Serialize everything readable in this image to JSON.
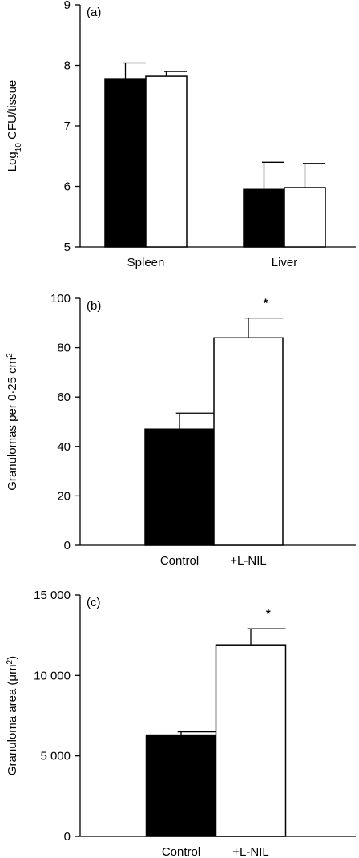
{
  "chart_data": [
    {
      "type": "bar",
      "panel": "(a)",
      "ylabel": [
        "Log",
        "10",
        " CFU/tissue"
      ],
      "categories": [
        "Spleen",
        "Liver"
      ],
      "series": [
        {
          "color": "#000000",
          "values": [
            7.78,
            5.95
          ],
          "errors": [
            0.26,
            0.45
          ]
        },
        {
          "color": "#ffffff",
          "values": [
            7.82,
            5.98
          ],
          "errors": [
            0.08,
            0.4
          ]
        }
      ],
      "ylim": [
        5,
        9
      ],
      "yticks": [
        5,
        6,
        7,
        8,
        9
      ]
    },
    {
      "type": "bar",
      "panel": "(b)",
      "ylabel": [
        "Granulomas per 0·25 cm",
        "2"
      ],
      "categories": [
        "Control",
        "+L-NIL"
      ],
      "values": [
        47,
        84
      ],
      "errors": [
        6.5,
        8
      ],
      "colors": [
        "#000000",
        "#ffffff"
      ],
      "annotations": [
        null,
        "*"
      ],
      "ylim": [
        0,
        100
      ],
      "yticks": [
        0,
        20,
        40,
        60,
        80,
        100
      ]
    },
    {
      "type": "bar",
      "panel": "(c)",
      "ylabel": [
        "Granuloma area (μm",
        "2",
        ")"
      ],
      "categories": [
        "Control",
        "+L-NIL"
      ],
      "values": [
        6300,
        11900
      ],
      "errors": [
        200,
        1000
      ],
      "colors": [
        "#000000",
        "#ffffff"
      ],
      "annotations": [
        null,
        "*"
      ],
      "ylim": [
        0,
        15000
      ],
      "yticks": [
        0,
        {
          "value": 5000,
          "label": "5 000"
        },
        {
          "value": 10000,
          "label": "10 000"
        },
        {
          "value": 15000,
          "label": "15 000"
        }
      ]
    }
  ]
}
